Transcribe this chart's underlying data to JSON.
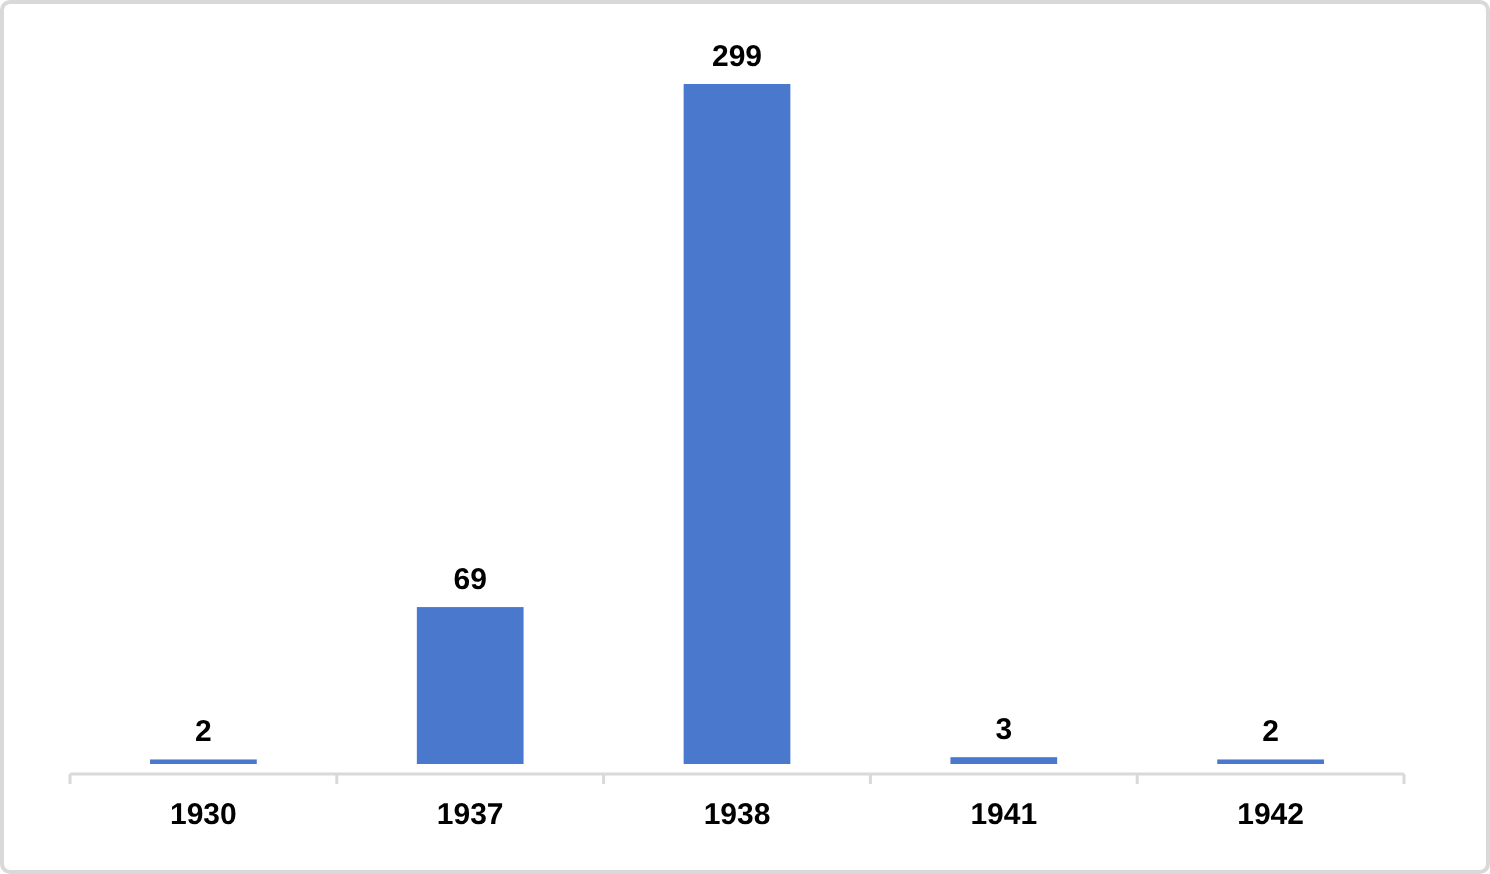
{
  "chart_data": {
    "type": "bar",
    "categories": [
      "1930",
      "1937",
      "1938",
      "1941",
      "1942"
    ],
    "values": [
      2,
      69,
      299,
      3,
      2
    ],
    "color": "#4a78cc",
    "data_labels": true
  }
}
